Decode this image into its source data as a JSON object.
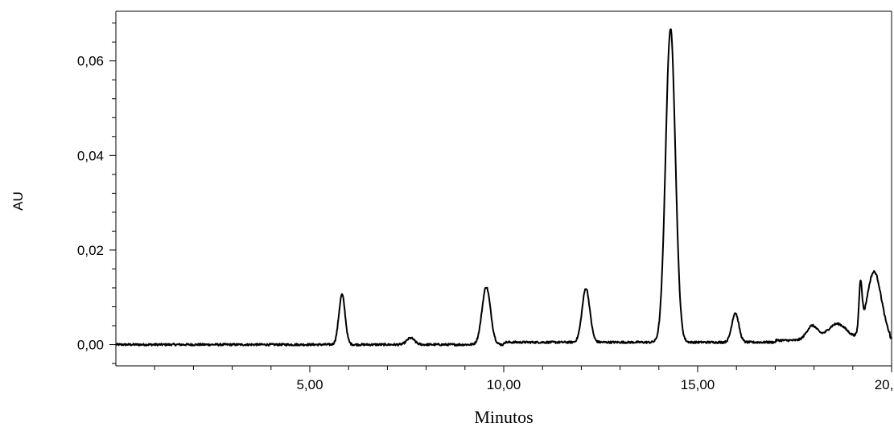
{
  "chart_data": {
    "type": "line",
    "title": "",
    "xlabel": "Minutos",
    "ylabel": "AU",
    "xlim": [
      0,
      20.0
    ],
    "ylim": [
      -0.0045,
      0.0705
    ],
    "x_ticks": [
      {
        "value": 5.0,
        "label": "5,00"
      },
      {
        "value": 10.0,
        "label": "10,00"
      },
      {
        "value": 15.0,
        "label": "15,00"
      },
      {
        "value": 20.0,
        "label": "20,00"
      }
    ],
    "x_minor_step": 1.0,
    "y_ticks": [
      {
        "value": 0.0,
        "label": "0,00"
      },
      {
        "value": 0.02,
        "label": "0,02"
      },
      {
        "value": 0.04,
        "label": "0,04"
      },
      {
        "value": 0.06,
        "label": "0,06"
      }
    ],
    "y_minor_step": 0.004,
    "grid": false,
    "series": [
      {
        "peaks": [
          {
            "rt": 5.83,
            "height": 0.0106,
            "width": 0.08
          },
          {
            "rt": 7.6,
            "height": 0.0014,
            "width": 0.1
          },
          {
            "rt": 9.55,
            "height": 0.0122,
            "width": 0.11
          },
          {
            "rt": 12.12,
            "height": 0.0114,
            "width": 0.1
          },
          {
            "rt": 14.3,
            "height": 0.0663,
            "width": 0.125
          },
          {
            "rt": 15.97,
            "height": 0.0062,
            "width": 0.09
          },
          {
            "rt": 17.95,
            "height": 0.003,
            "width": 0.14
          },
          {
            "rt": 18.6,
            "height": 0.0035,
            "width": 0.25
          },
          {
            "rt": 19.2,
            "height": 0.01,
            "width": 0.04
          },
          {
            "rt": 19.55,
            "height": 0.0145,
            "width": 0.19
          }
        ]
      }
    ]
  }
}
